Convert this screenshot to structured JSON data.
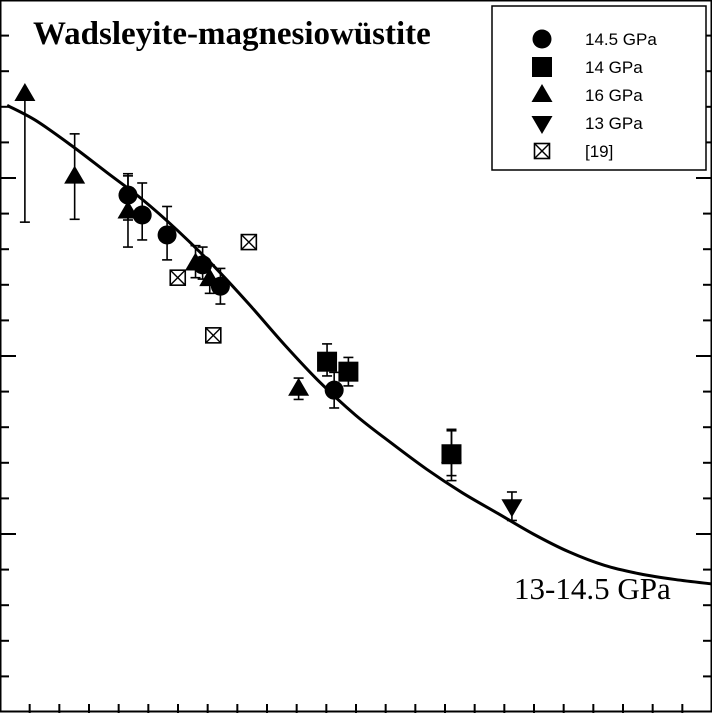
{
  "chart_data": {
    "type": "scatter",
    "title": "Wadsleyite-magnesiowüstite",
    "annotation": "13-14.5 GPa",
    "xlabel": "",
    "ylabel": "",
    "xlim": [
      0,
      100
    ],
    "ylim": [
      0,
      100
    ],
    "grid": false,
    "legend_position": "top-right",
    "series": [
      {
        "name": "14.5 GPa",
        "marker": "circle",
        "filled": true,
        "points": [
          {
            "x": 18.0,
            "y": 72.6,
            "err_low": 3.5,
            "err_high": 3.0
          },
          {
            "x": 20.0,
            "y": 69.8,
            "err_low": 3.5,
            "err_high": 4.5
          },
          {
            "x": 23.5,
            "y": 67.0,
            "err_low": 3.5,
            "err_high": 4.0
          },
          {
            "x": 28.5,
            "y": 62.8,
            "err_low": 2.0,
            "err_high": 2.5
          },
          {
            "x": 31.0,
            "y": 59.8,
            "err_low": 2.5,
            "err_high": 2.5
          },
          {
            "x": 47.0,
            "y": 45.2,
            "err_low": 2.5,
            "err_high": 2.5
          }
        ]
      },
      {
        "name": "14 GPa",
        "marker": "square",
        "filled": true,
        "points": [
          {
            "x": 46.0,
            "y": 49.2,
            "err_low": 2.0,
            "err_high": 2.5
          },
          {
            "x": 49.0,
            "y": 47.8,
            "err_low": 2.0,
            "err_high": 2.0
          },
          {
            "x": 63.5,
            "y": 36.2,
            "err_low": 3.0,
            "err_high": 3.5
          }
        ]
      },
      {
        "name": "16 GPa",
        "marker": "triangle-up",
        "filled": true,
        "points": [
          {
            "x": 3.5,
            "y": 86.8,
            "err_low": 18.0,
            "err_high": 0
          },
          {
            "x": 10.5,
            "y": 75.2,
            "err_low": 6.0,
            "err_high": 6.0
          },
          {
            "x": 18.0,
            "y": 70.3,
            "err_low": 5.0,
            "err_high": 5.0
          },
          {
            "x": 27.5,
            "y": 63.0,
            "err_low": 2.0,
            "err_high": 2.5
          },
          {
            "x": 29.5,
            "y": 60.8,
            "err_low": 2.0,
            "err_high": 2.0
          },
          {
            "x": 42.0,
            "y": 45.4,
            "err_low": 1.5,
            "err_high": 1.5
          },
          {
            "x": 63.5,
            "y": 36.0,
            "err_low": 3.5,
            "err_high": 3.5
          }
        ]
      },
      {
        "name": "13 GPa",
        "marker": "triangle-down",
        "filled": true,
        "points": [
          {
            "x": 72.0,
            "y": 28.9,
            "err_low": 2.0,
            "err_high": 2.0
          }
        ]
      },
      {
        "name": "[19]",
        "marker": "boxed-x",
        "filled": false,
        "points": [
          {
            "x": 35.0,
            "y": 66.0
          },
          {
            "x": 25.0,
            "y": 61.0
          },
          {
            "x": 30.0,
            "y": 52.9
          }
        ]
      }
    ],
    "fit_curve": {
      "label": "13-14.5 GPa",
      "points": [
        [
          1,
          85.2
        ],
        [
          5,
          83.1
        ],
        [
          10,
          79.6
        ],
        [
          15,
          75.8
        ],
        [
          20,
          72.0
        ],
        [
          25,
          67.6
        ],
        [
          30,
          62.7
        ],
        [
          35,
          57.3
        ],
        [
          40,
          51.6
        ],
        [
          45,
          46.3
        ],
        [
          50,
          41.7
        ],
        [
          55,
          37.8
        ],
        [
          60,
          34.1
        ],
        [
          65,
          30.8
        ],
        [
          70,
          27.9
        ],
        [
          75,
          25.0
        ],
        [
          80,
          22.5
        ],
        [
          85,
          20.6
        ],
        [
          90,
          19.4
        ],
        [
          95,
          18.6
        ],
        [
          100,
          18.0
        ]
      ]
    }
  }
}
